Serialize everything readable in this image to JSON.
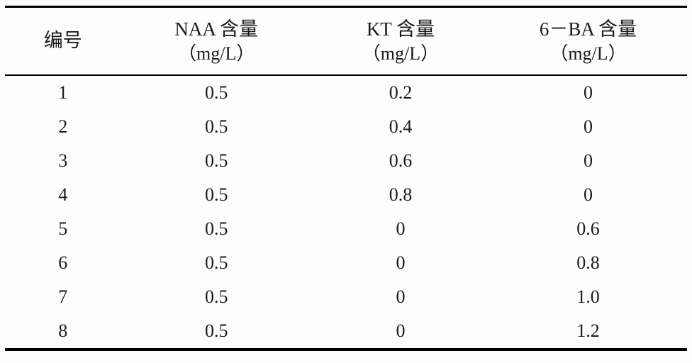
{
  "table": {
    "headers": {
      "col1": "编号",
      "col2_line1": "NAA 含量",
      "col2_line2": "（mg/L）",
      "col3_line1": "KT 含量",
      "col3_line2": "（mg/L）",
      "col4_line1": "6－BA 含量",
      "col4_line2": "（mg/L）"
    },
    "rows": [
      {
        "id": "1",
        "naa": "0.5",
        "kt": "0.2",
        "ba": "0"
      },
      {
        "id": "2",
        "naa": "0.5",
        "kt": "0.4",
        "ba": "0"
      },
      {
        "id": "3",
        "naa": "0.5",
        "kt": "0.6",
        "ba": "0"
      },
      {
        "id": "4",
        "naa": "0.5",
        "kt": "0.8",
        "ba": "0"
      },
      {
        "id": "5",
        "naa": "0.5",
        "kt": "0",
        "ba": "0.6"
      },
      {
        "id": "6",
        "naa": "0.5",
        "kt": "0",
        "ba": "0.8"
      },
      {
        "id": "7",
        "naa": "0.5",
        "kt": "0",
        "ba": "1.0"
      },
      {
        "id": "8",
        "naa": "0.5",
        "kt": "0",
        "ba": "1.2"
      }
    ]
  },
  "chart_data": {
    "type": "table",
    "columns": [
      "编号",
      "NAA 含量（mg/L）",
      "KT 含量（mg/L）",
      "6－BA 含量（mg/L）"
    ],
    "rows": [
      [
        1,
        0.5,
        0.2,
        0
      ],
      [
        2,
        0.5,
        0.4,
        0
      ],
      [
        3,
        0.5,
        0.6,
        0
      ],
      [
        4,
        0.5,
        0.8,
        0
      ],
      [
        5,
        0.5,
        0,
        0.6
      ],
      [
        6,
        0.5,
        0,
        0.8
      ],
      [
        7,
        0.5,
        0,
        1.0
      ],
      [
        8,
        0.5,
        0,
        1.2
      ]
    ]
  }
}
